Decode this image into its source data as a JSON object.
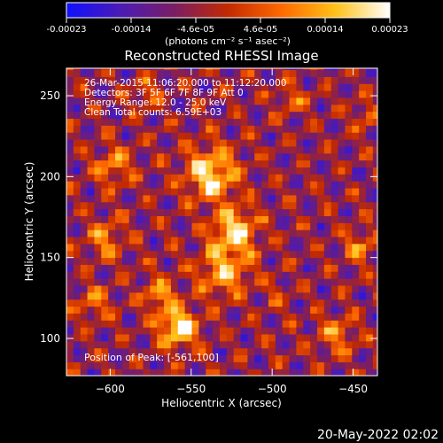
{
  "colorbar": {
    "ticks": [
      "-0.00023",
      "-0.00014",
      "-4.6e-05",
      "4.6e-05",
      "0.00014",
      "0.00023"
    ],
    "range": [
      -0.00023,
      0.00023
    ],
    "unit_label": "(photons cm⁻² s⁻¹ asec⁻²)",
    "colors": [
      "#1010ff",
      "#4b1bb5",
      "#7a1e64",
      "#c32a00",
      "#ff6a00",
      "#ffc21a",
      "#ffffff"
    ]
  },
  "chart_data": {
    "type": "heatmap",
    "title": "Reconstructed RHESSI Image",
    "xlabel": "Heliocentric X (arcsec)",
    "ylabel": "Heliocentric Y (arcsec)",
    "xlim": [
      -627,
      -435
    ],
    "ylim": [
      77,
      267
    ],
    "xticks": [
      -600,
      -550,
      -500,
      -450
    ],
    "xtick_labels": [
      "−600",
      "−550",
      "−500",
      "−450"
    ],
    "yticks": [
      100,
      150,
      200,
      250
    ],
    "ytick_labels": [
      "100",
      "150",
      "200",
      "250"
    ],
    "annotations": [
      "26-Mar-2015 11:06:20.000 to 11:12:20.000",
      "Detectors: 3F 5F 6F 7F 8F 9F  Att 0",
      "Energy Range: 12.0 - 25.0 keV",
      "Clean     Total counts: 6.59E+03"
    ],
    "peak_label": "Position of Peak:  [-561,100]",
    "peak": [
      -561,
      100
    ]
  },
  "footer_date": "20-May-2022 02:02"
}
